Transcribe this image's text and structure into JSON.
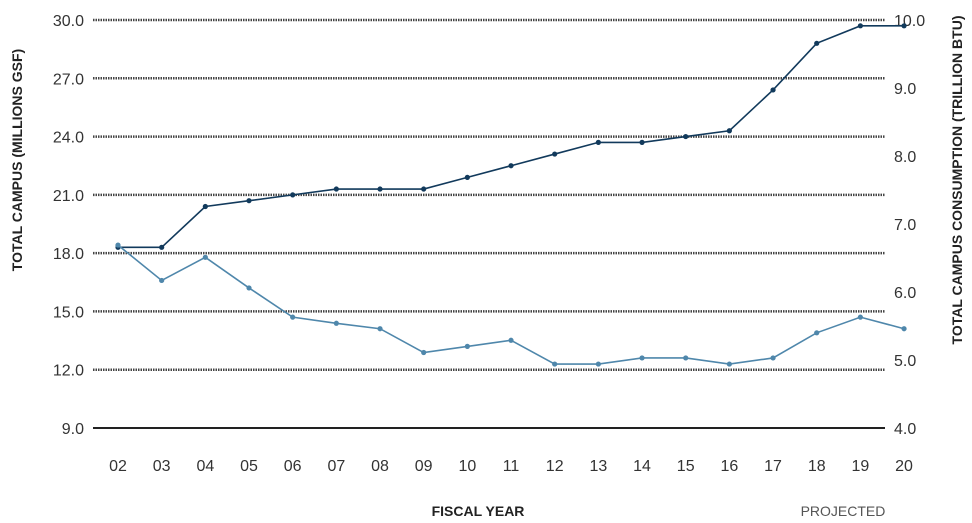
{
  "chart_data": {
    "type": "line",
    "xlabel": "FISCAL YEAR",
    "ylabel_left": "TOTAL CAMPUS (MILLIONS GSF)",
    "ylabel_right": "TOTAL CAMPUS CONSUMPTION (TRILLION BTU)",
    "note": "PROJECTED",
    "categories": [
      "02",
      "03",
      "04",
      "05",
      "06",
      "07",
      "08",
      "09",
      "10",
      "11",
      "12",
      "13",
      "14",
      "15",
      "16",
      "17",
      "18",
      "19",
      "20"
    ],
    "y_left_ticks": [
      "30.0",
      "27.0",
      "24.0",
      "21.0",
      "18.0",
      "15.0",
      "12.0",
      "9.0"
    ],
    "y_right_ticks": [
      "10.0",
      "9.0",
      "8.0",
      "7.0",
      "6.0",
      "5.0",
      "4.0"
    ],
    "ylim_left": [
      9,
      30
    ],
    "ylim_right": [
      4,
      10
    ],
    "grid": true,
    "series": [
      {
        "axis": "left",
        "color": "#123a5c",
        "values": [
          18.3,
          18.3,
          20.4,
          20.7,
          21.0,
          21.3,
          21.3,
          21.3,
          21.9,
          22.5,
          23.1,
          23.7,
          23.7,
          24.0,
          24.3,
          26.4,
          28.8,
          29.7,
          29.7
        ]
      },
      {
        "axis": "right",
        "color": "#4f87ab",
        "values": [
          6.69,
          6.17,
          6.51,
          6.06,
          5.63,
          5.54,
          5.46,
          5.11,
          5.2,
          5.29,
          4.94,
          4.94,
          5.03,
          5.03,
          4.94,
          5.03,
          5.4,
          5.63,
          5.46
        ]
      }
    ]
  }
}
